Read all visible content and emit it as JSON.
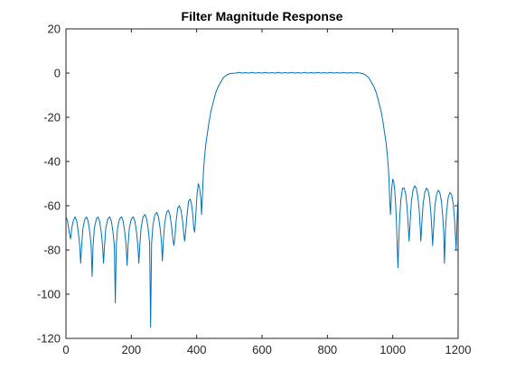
{
  "chart_data": {
    "type": "line",
    "title": "Filter Magnitude Response",
    "xlabel": "",
    "ylabel": "",
    "xlim": [
      0,
      1200
    ],
    "ylim": [
      -120,
      20
    ],
    "xticks": [
      0,
      200,
      400,
      600,
      800,
      1000,
      1200
    ],
    "yticks": [
      20,
      0,
      -20,
      -40,
      -60,
      -80,
      -100,
      -120
    ],
    "grid": false,
    "box": true,
    "colors": {
      "line": "#0072BD",
      "axes": "#262626",
      "background": "#ffffff"
    },
    "series": [
      {
        "points": [
          [
            0,
            -65
          ],
          [
            5,
            -67
          ],
          [
            10,
            -72
          ],
          [
            14,
            -75
          ],
          [
            18,
            -70
          ],
          [
            22,
            -67
          ],
          [
            28,
            -65
          ],
          [
            33,
            -67
          ],
          [
            38,
            -72
          ],
          [
            42,
            -78
          ],
          [
            45,
            -86
          ],
          [
            48,
            -78
          ],
          [
            52,
            -70
          ],
          [
            58,
            -66
          ],
          [
            63,
            -65
          ],
          [
            68,
            -67
          ],
          [
            73,
            -72
          ],
          [
            77,
            -78
          ],
          [
            80,
            -92
          ],
          [
            83,
            -78
          ],
          [
            87,
            -70
          ],
          [
            93,
            -66
          ],
          [
            98,
            -65
          ],
          [
            103,
            -67
          ],
          [
            108,
            -72
          ],
          [
            112,
            -78
          ],
          [
            115,
            -86
          ],
          [
            118,
            -78
          ],
          [
            122,
            -70
          ],
          [
            128,
            -66
          ],
          [
            134,
            -65
          ],
          [
            139,
            -67
          ],
          [
            144,
            -72
          ],
          [
            148,
            -78
          ],
          [
            151,
            -104
          ],
          [
            154,
            -78
          ],
          [
            158,
            -70
          ],
          [
            164,
            -66
          ],
          [
            170,
            -65
          ],
          [
            175,
            -67
          ],
          [
            180,
            -72
          ],
          [
            184,
            -78
          ],
          [
            187,
            -87
          ],
          [
            190,
            -78
          ],
          [
            194,
            -70
          ],
          [
            200,
            -66
          ],
          [
            206,
            -65
          ],
          [
            211,
            -67
          ],
          [
            216,
            -72
          ],
          [
            220,
            -78
          ],
          [
            223,
            -86
          ],
          [
            226,
            -78
          ],
          [
            230,
            -70
          ],
          [
            236,
            -65
          ],
          [
            242,
            -64
          ],
          [
            247,
            -66
          ],
          [
            252,
            -71
          ],
          [
            256,
            -77
          ],
          [
            259,
            -115
          ],
          [
            262,
            -77
          ],
          [
            266,
            -69
          ],
          [
            272,
            -64
          ],
          [
            278,
            -63
          ],
          [
            283,
            -65
          ],
          [
            288,
            -70
          ],
          [
            292,
            -76
          ],
          [
            295,
            -85
          ],
          [
            298,
            -76
          ],
          [
            302,
            -68
          ],
          [
            308,
            -63
          ],
          [
            313,
            -62
          ],
          [
            318,
            -64
          ],
          [
            323,
            -69
          ],
          [
            327,
            -75
          ],
          [
            330,
            -78
          ],
          [
            333,
            -75
          ],
          [
            337,
            -67
          ],
          [
            342,
            -61
          ],
          [
            347,
            -60
          ],
          [
            352,
            -62
          ],
          [
            357,
            -67
          ],
          [
            360,
            -72
          ],
          [
            363,
            -76
          ],
          [
            366,
            -72
          ],
          [
            370,
            -65
          ],
          [
            375,
            -58
          ],
          [
            380,
            -57
          ],
          [
            384,
            -59
          ],
          [
            388,
            -64
          ],
          [
            391,
            -70
          ],
          [
            394,
            -72
          ],
          [
            397,
            -65
          ],
          [
            401,
            -55
          ],
          [
            405,
            -50
          ],
          [
            409,
            -52
          ],
          [
            413,
            -57
          ],
          [
            415,
            -64
          ],
          [
            417,
            -58
          ],
          [
            419,
            -50
          ],
          [
            421,
            -44
          ],
          [
            424,
            -38
          ],
          [
            428,
            -32
          ],
          [
            433,
            -27
          ],
          [
            438,
            -22
          ],
          [
            444,
            -17
          ],
          [
            451,
            -13
          ],
          [
            458,
            -9
          ],
          [
            466,
            -6
          ],
          [
            474,
            -4
          ],
          [
            482,
            -2
          ],
          [
            490,
            -1
          ],
          [
            500,
            -0.3
          ],
          [
            510,
            -0.1
          ],
          [
            520,
            0
          ],
          [
            530,
            0.3
          ],
          [
            540,
            0
          ],
          [
            550,
            0.2
          ],
          [
            560,
            0
          ],
          [
            570,
            0.3
          ],
          [
            580,
            0
          ],
          [
            590,
            0.2
          ],
          [
            600,
            0
          ],
          [
            610,
            0.3
          ],
          [
            620,
            0
          ],
          [
            630,
            0.2
          ],
          [
            640,
            0
          ],
          [
            650,
            0.3
          ],
          [
            660,
            0
          ],
          [
            670,
            0.2
          ],
          [
            680,
            0
          ],
          [
            690,
            0.3
          ],
          [
            700,
            0
          ],
          [
            710,
            0.2
          ],
          [
            720,
            0
          ],
          [
            730,
            0.3
          ],
          [
            740,
            0
          ],
          [
            750,
            0.2
          ],
          [
            760,
            0
          ],
          [
            770,
            0.3
          ],
          [
            780,
            0
          ],
          [
            790,
            0.2
          ],
          [
            800,
            0
          ],
          [
            810,
            0.3
          ],
          [
            820,
            0
          ],
          [
            830,
            0.2
          ],
          [
            840,
            0
          ],
          [
            850,
            0.3
          ],
          [
            860,
            0
          ],
          [
            870,
            0.2
          ],
          [
            880,
            0
          ],
          [
            890,
            0.2
          ],
          [
            900,
            0
          ],
          [
            910,
            -0.3
          ],
          [
            918,
            -1
          ],
          [
            926,
            -2
          ],
          [
            934,
            -4
          ],
          [
            942,
            -6
          ],
          [
            950,
            -9
          ],
          [
            957,
            -13
          ],
          [
            964,
            -17
          ],
          [
            970,
            -22
          ],
          [
            975,
            -27
          ],
          [
            980,
            -32
          ],
          [
            984,
            -38
          ],
          [
            987,
            -44
          ],
          [
            989,
            -50
          ],
          [
            991,
            -58
          ],
          [
            993,
            -64
          ],
          [
            995,
            -58
          ],
          [
            997,
            -52
          ],
          [
            1000,
            -48
          ],
          [
            1003,
            -49
          ],
          [
            1006,
            -53
          ],
          [
            1009,
            -60
          ],
          [
            1012,
            -70
          ],
          [
            1014,
            -80
          ],
          [
            1016,
            -88
          ],
          [
            1018,
            -78
          ],
          [
            1021,
            -66
          ],
          [
            1025,
            -57
          ],
          [
            1030,
            -52
          ],
          [
            1035,
            -52
          ],
          [
            1040,
            -55
          ],
          [
            1044,
            -61
          ],
          [
            1047,
            -68
          ],
          [
            1050,
            -76
          ],
          [
            1053,
            -68
          ],
          [
            1057,
            -58
          ],
          [
            1062,
            -53
          ],
          [
            1067,
            -51
          ],
          [
            1072,
            -52
          ],
          [
            1077,
            -56
          ],
          [
            1081,
            -62
          ],
          [
            1084,
            -70
          ],
          [
            1086,
            -76
          ],
          [
            1089,
            -68
          ],
          [
            1093,
            -59
          ],
          [
            1098,
            -54
          ],
          [
            1103,
            -52
          ],
          [
            1108,
            -53
          ],
          [
            1113,
            -57
          ],
          [
            1117,
            -64
          ],
          [
            1120,
            -72
          ],
          [
            1122,
            -78
          ],
          [
            1125,
            -70
          ],
          [
            1129,
            -60
          ],
          [
            1134,
            -55
          ],
          [
            1139,
            -53
          ],
          [
            1144,
            -54
          ],
          [
            1149,
            -58
          ],
          [
            1153,
            -65
          ],
          [
            1156,
            -72
          ],
          [
            1158,
            -86
          ],
          [
            1161,
            -72
          ],
          [
            1165,
            -62
          ],
          [
            1170,
            -56
          ],
          [
            1175,
            -54
          ],
          [
            1180,
            -55
          ],
          [
            1185,
            -59
          ],
          [
            1189,
            -66
          ],
          [
            1192,
            -74
          ],
          [
            1194,
            -80
          ],
          [
            1196,
            -70
          ],
          [
            1198,
            -62
          ],
          [
            1200,
            -57
          ]
        ]
      }
    ]
  }
}
